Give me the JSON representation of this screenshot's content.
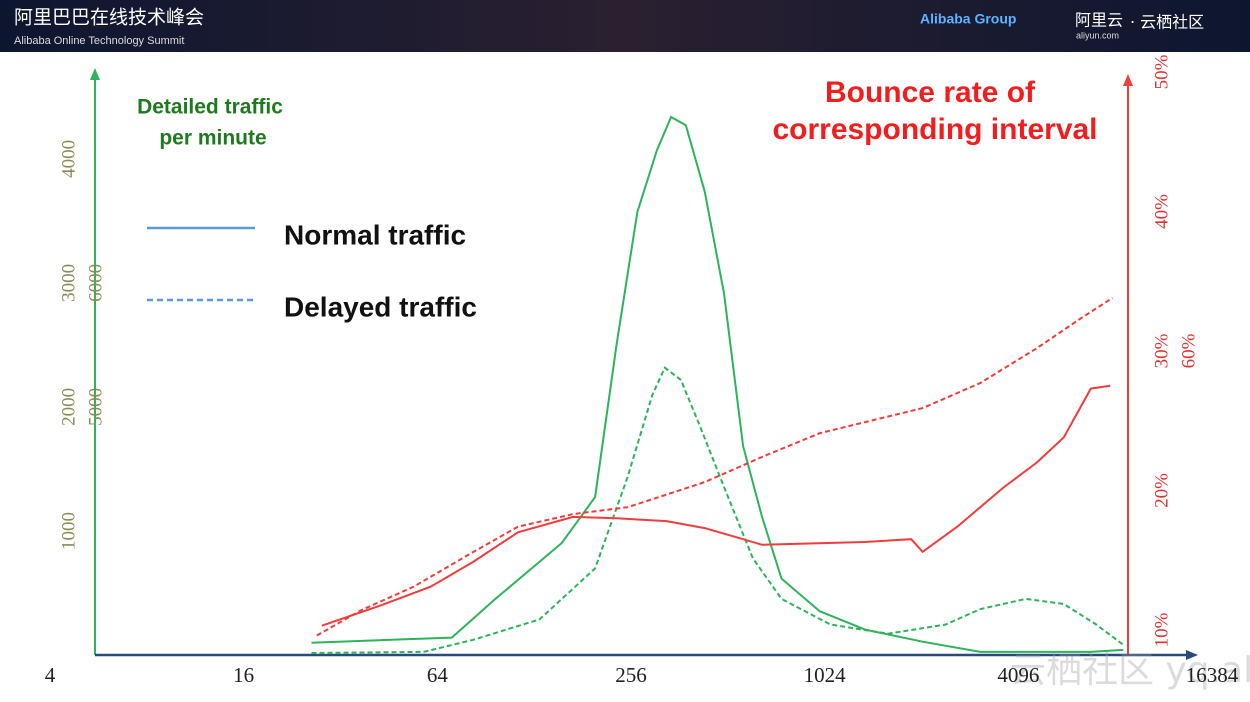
{
  "header": {
    "title_cn": "阿里巴巴在线技术峰会",
    "title_en": "Alibaba Online Technology Summit",
    "group": "Alibaba Group",
    "aliyun": "阿里云",
    "aliyun_url": "aliyun.com",
    "community": "· 云栖社区"
  },
  "watermark": "云栖社区 yq.aliyun.com",
  "chart_data": {
    "type": "line",
    "ylabel": [
      "Detailed traffic",
      "per minute"
    ],
    "y2label": [
      "Bounce rate of",
      "corresponding interval"
    ],
    "xscale": "log2",
    "xlim": [
      4,
      16384
    ],
    "xticks": [
      4,
      16,
      64,
      256,
      1024,
      4096,
      16384
    ],
    "ylim": [
      0,
      4700
    ],
    "yticks": [
      1000,
      2000,
      3000,
      4000
    ],
    "y3lim": [
      3000,
      7700
    ],
    "y3ticks": [
      5000,
      6000
    ],
    "y2lim": [
      8.2,
      50
    ],
    "y2ticks": [
      {
        "value": 10,
        "label": "10%"
      },
      {
        "value": 20,
        "label": "20%"
      },
      {
        "value": 30,
        "label": "30%"
      },
      {
        "value": 40,
        "label": "40%"
      },
      {
        "value": 50,
        "label": "50%"
      }
    ],
    "y4lim": [
      38.2,
      80
    ],
    "y4ticks": [
      {
        "value": 60,
        "label": "60%"
      }
    ],
    "legend": [
      {
        "label": "Normal traffic",
        "color": "#5b9bd5",
        "dash": false
      },
      {
        "label": "Delayed traffic",
        "color": "#5b9bd5",
        "dash": true
      }
    ],
    "series": [
      {
        "color": "#2db35a",
        "dash": false,
        "axis": "y",
        "x": [
          26,
          71,
          97,
          156,
          198,
          231,
          268,
          308,
          341,
          379,
          434,
          498,
          571,
          655,
          752,
          988,
          1367,
          2064,
          3120,
          6882,
          8680
        ],
        "values": [
          99,
          140,
          452,
          903,
          1273,
          2505,
          3573,
          4066,
          4337,
          4271,
          3737,
          2916,
          1684,
          1109,
          616,
          353,
          205,
          107,
          25,
          25,
          41
        ]
      },
      {
        "color": "#2db35a",
        "dash": true,
        "axis": "y",
        "x": [
          26,
          58,
          83,
          133,
          198,
          250,
          298,
          326,
          366,
          419,
          498,
          612,
          752,
          1067,
          1612,
          2436,
          3120,
          4325,
          5672,
          7150,
          8680
        ],
        "values": [
          16,
          25,
          123,
          287,
          698,
          1437,
          2094,
          2316,
          2218,
          1848,
          1355,
          780,
          452,
          246,
          172,
          246,
          370,
          452,
          411,
          246,
          82
        ]
      },
      {
        "color": "#f03c3c",
        "dash": false,
        "axis": "y2",
        "x": [
          28,
          42,
          61,
          83,
          114,
          169,
          231,
          330,
          434,
          534,
          655,
          1367,
          1902,
          2064,
          2647,
          3679,
          4674,
          5672,
          6882,
          7905
        ],
        "values": [
          10.3,
          11.7,
          13.1,
          14.9,
          17.0,
          18.1,
          18.0,
          17.8,
          17.3,
          16.7,
          16.1,
          16.3,
          16.5,
          15.6,
          17.4,
          20.2,
          22.0,
          23.8,
          27.3,
          27.5
        ]
      },
      {
        "color": "#f03c3c",
        "dash": true,
        "axis": "y2",
        "x": [
          27,
          37,
          54,
          83,
          114,
          169,
          250,
          330,
          434,
          655,
          988,
          2064,
          3120,
          4674,
          6370,
          8036
        ],
        "values": [
          9.6,
          11.4,
          13.1,
          15.6,
          17.4,
          18.3,
          18.8,
          19.7,
          20.6,
          22.4,
          24.1,
          25.9,
          27.7,
          30.2,
          32.3,
          33.8
        ]
      }
    ]
  }
}
